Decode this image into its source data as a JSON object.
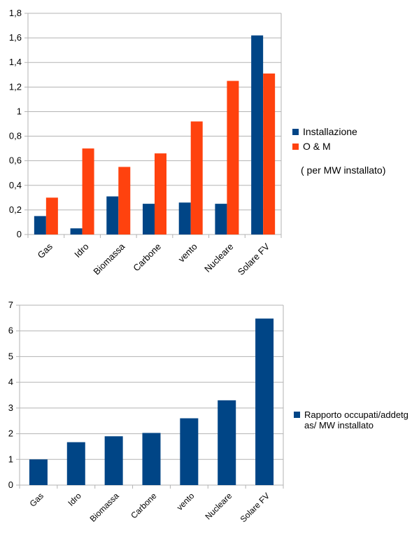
{
  "chart_data": [
    {
      "type": "bar",
      "categories": [
        "Gas",
        "Idro",
        "Biomassa",
        "Carbone",
        "vento",
        "Nucleare",
        "Solare FV"
      ],
      "series": [
        {
          "name": "Installazione",
          "values": [
            0.15,
            0.05,
            0.31,
            0.25,
            0.26,
            0.25,
            1.62
          ],
          "color": "#004586"
        },
        {
          "name": "O & M",
          "values": [
            0.3,
            0.7,
            0.55,
            0.66,
            0.92,
            1.25,
            1.31
          ],
          "color": "#ff420e"
        }
      ],
      "annotation": "( per MW installato)",
      "ylim": [
        0,
        1.8
      ],
      "yticks": [
        "0",
        "0,2",
        "0,4",
        "0,6",
        "0,8",
        "1",
        "1,2",
        "1,4",
        "1,6",
        "1,8"
      ],
      "grid": true,
      "legend": "right"
    },
    {
      "type": "bar",
      "categories": [
        "Gas",
        "Idro",
        "Biomassa",
        "Carbone",
        "vento",
        "Nucleare",
        "Solare FV"
      ],
      "series": [
        {
          "name": "Rapporto occupati/addetgas/ MW installato",
          "values": [
            1.0,
            1.67,
            1.9,
            2.03,
            2.6,
            3.3,
            6.48
          ],
          "color": "#004586"
        }
      ],
      "ylim": [
        0,
        7
      ],
      "yticks": [
        "0",
        "1",
        "2",
        "3",
        "4",
        "5",
        "6",
        "7"
      ],
      "grid": true,
      "legend": "right"
    }
  ]
}
